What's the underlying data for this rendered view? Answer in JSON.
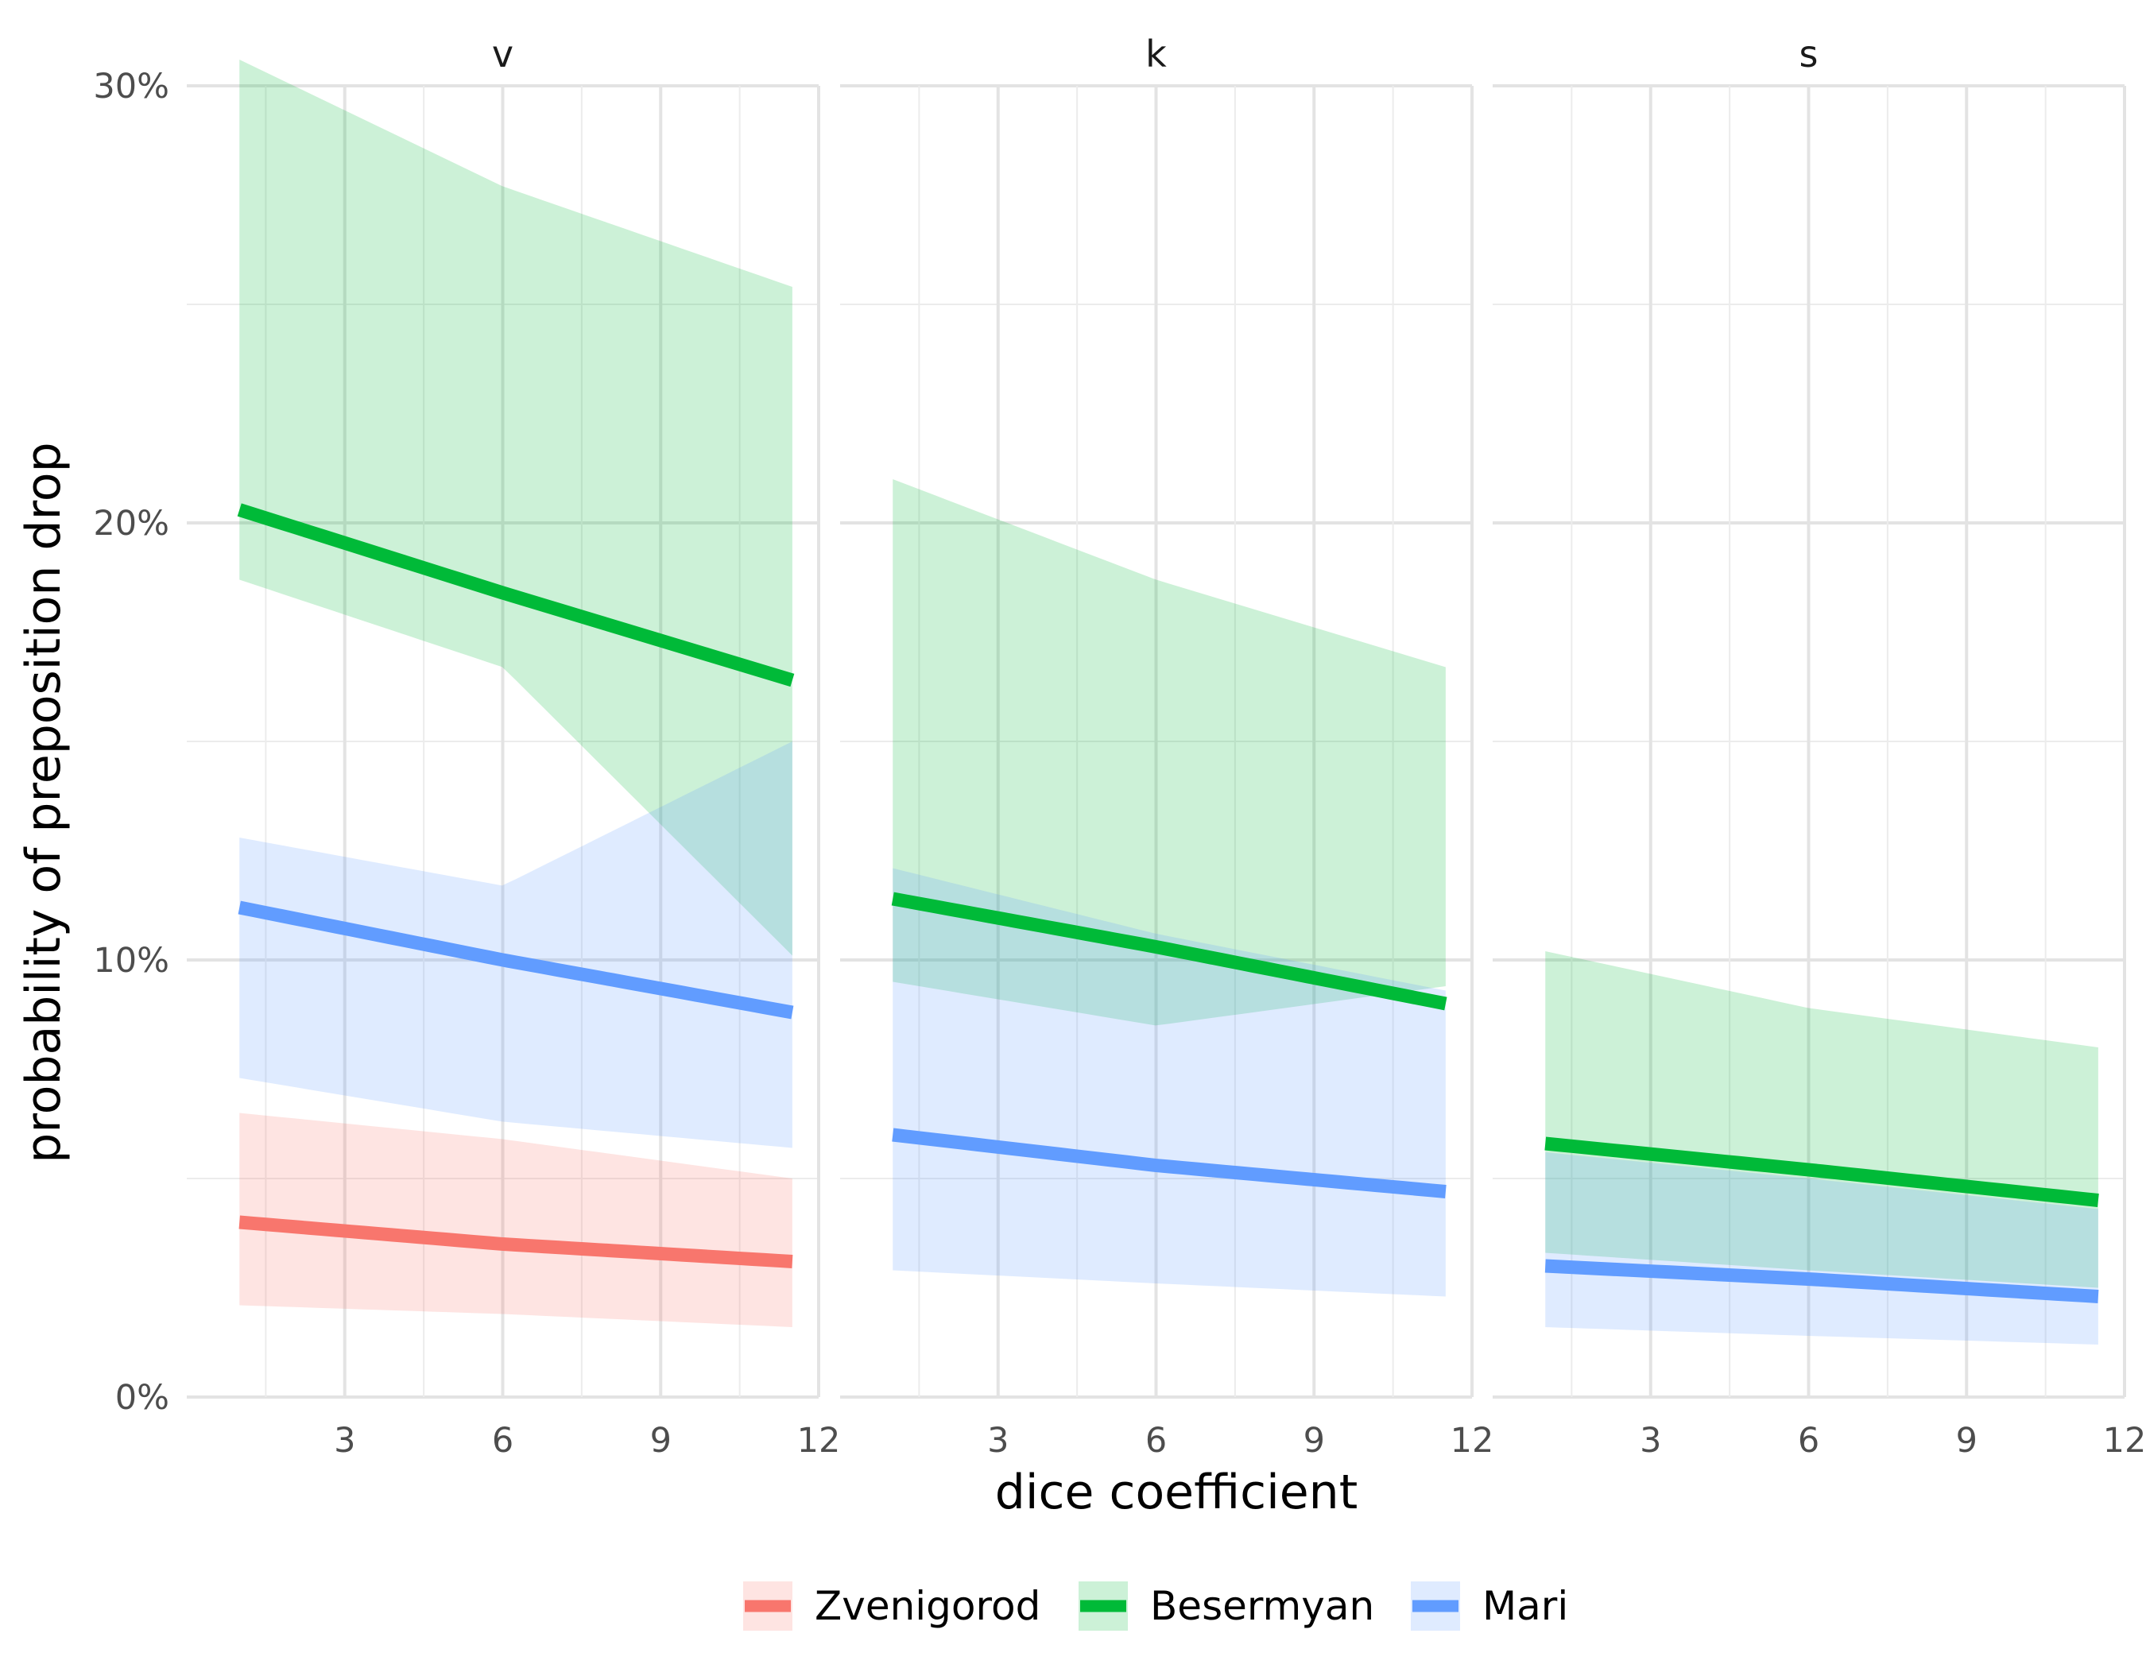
{
  "chart_data": {
    "type": "line",
    "facets": [
      "v",
      "k",
      "s"
    ],
    "xlabel": "dice coefficient",
    "ylabel": "probability of preposition drop",
    "xlim": [
      0,
      12
    ],
    "x_range": [
      1,
      11.5
    ],
    "xticks": [
      "3",
      "6",
      "9",
      "12"
    ],
    "ylim": [
      0,
      0.3
    ],
    "yticks": [
      "0%",
      "10%",
      "20%",
      "30%"
    ],
    "grid": true,
    "legend_position": "bottom",
    "colors": {
      "Zvenigorod": "#F8766D",
      "Besermyan": "#00BA38",
      "Mari": "#619CFF"
    },
    "series": [
      {
        "name": "Zvenigorod",
        "facet": "v",
        "x": [
          1,
          6,
          11.5
        ],
        "y": [
          0.04,
          0.035,
          0.031
        ],
        "lower": [
          0.021,
          0.019,
          0.016
        ],
        "upper": [
          0.065,
          0.059,
          0.05
        ]
      },
      {
        "name": "Besermyan",
        "facet": "v",
        "x": [
          1,
          6,
          11.5
        ],
        "y": [
          0.203,
          0.184,
          0.164
        ],
        "lower": [
          0.187,
          0.167,
          0.101
        ],
        "upper": [
          0.306,
          0.277,
          0.254
        ]
      },
      {
        "name": "Mari",
        "facet": "v",
        "x": [
          1,
          6,
          11.5
        ],
        "y": [
          0.112,
          0.1,
          0.088
        ],
        "lower": [
          0.073,
          0.063,
          0.057
        ],
        "upper": [
          0.128,
          0.117,
          0.15
        ]
      },
      {
        "name": "Besermyan",
        "facet": "k",
        "x": [
          1,
          6,
          11.5
        ],
        "y": [
          0.114,
          0.103,
          0.09
        ],
        "lower": [
          0.095,
          0.085,
          0.094
        ],
        "upper": [
          0.21,
          0.187,
          0.167
        ]
      },
      {
        "name": "Mari",
        "facet": "k",
        "x": [
          1,
          6,
          11.5
        ],
        "y": [
          0.06,
          0.053,
          0.047
        ],
        "lower": [
          0.029,
          0.026,
          0.023
        ],
        "upper": [
          0.121,
          0.106,
          0.093
        ]
      },
      {
        "name": "Besermyan",
        "facet": "s",
        "x": [
          1,
          6,
          11.5
        ],
        "y": [
          0.058,
          0.052,
          0.045
        ],
        "lower": [
          0.033,
          0.029,
          0.025
        ],
        "upper": [
          0.102,
          0.089,
          0.08
        ]
      },
      {
        "name": "Mari",
        "facet": "s",
        "x": [
          1,
          6,
          11.5
        ],
        "y": [
          0.03,
          0.027,
          0.023
        ],
        "lower": [
          0.016,
          0.014,
          0.012
        ],
        "upper": [
          0.056,
          0.05,
          0.043
        ]
      }
    ]
  }
}
